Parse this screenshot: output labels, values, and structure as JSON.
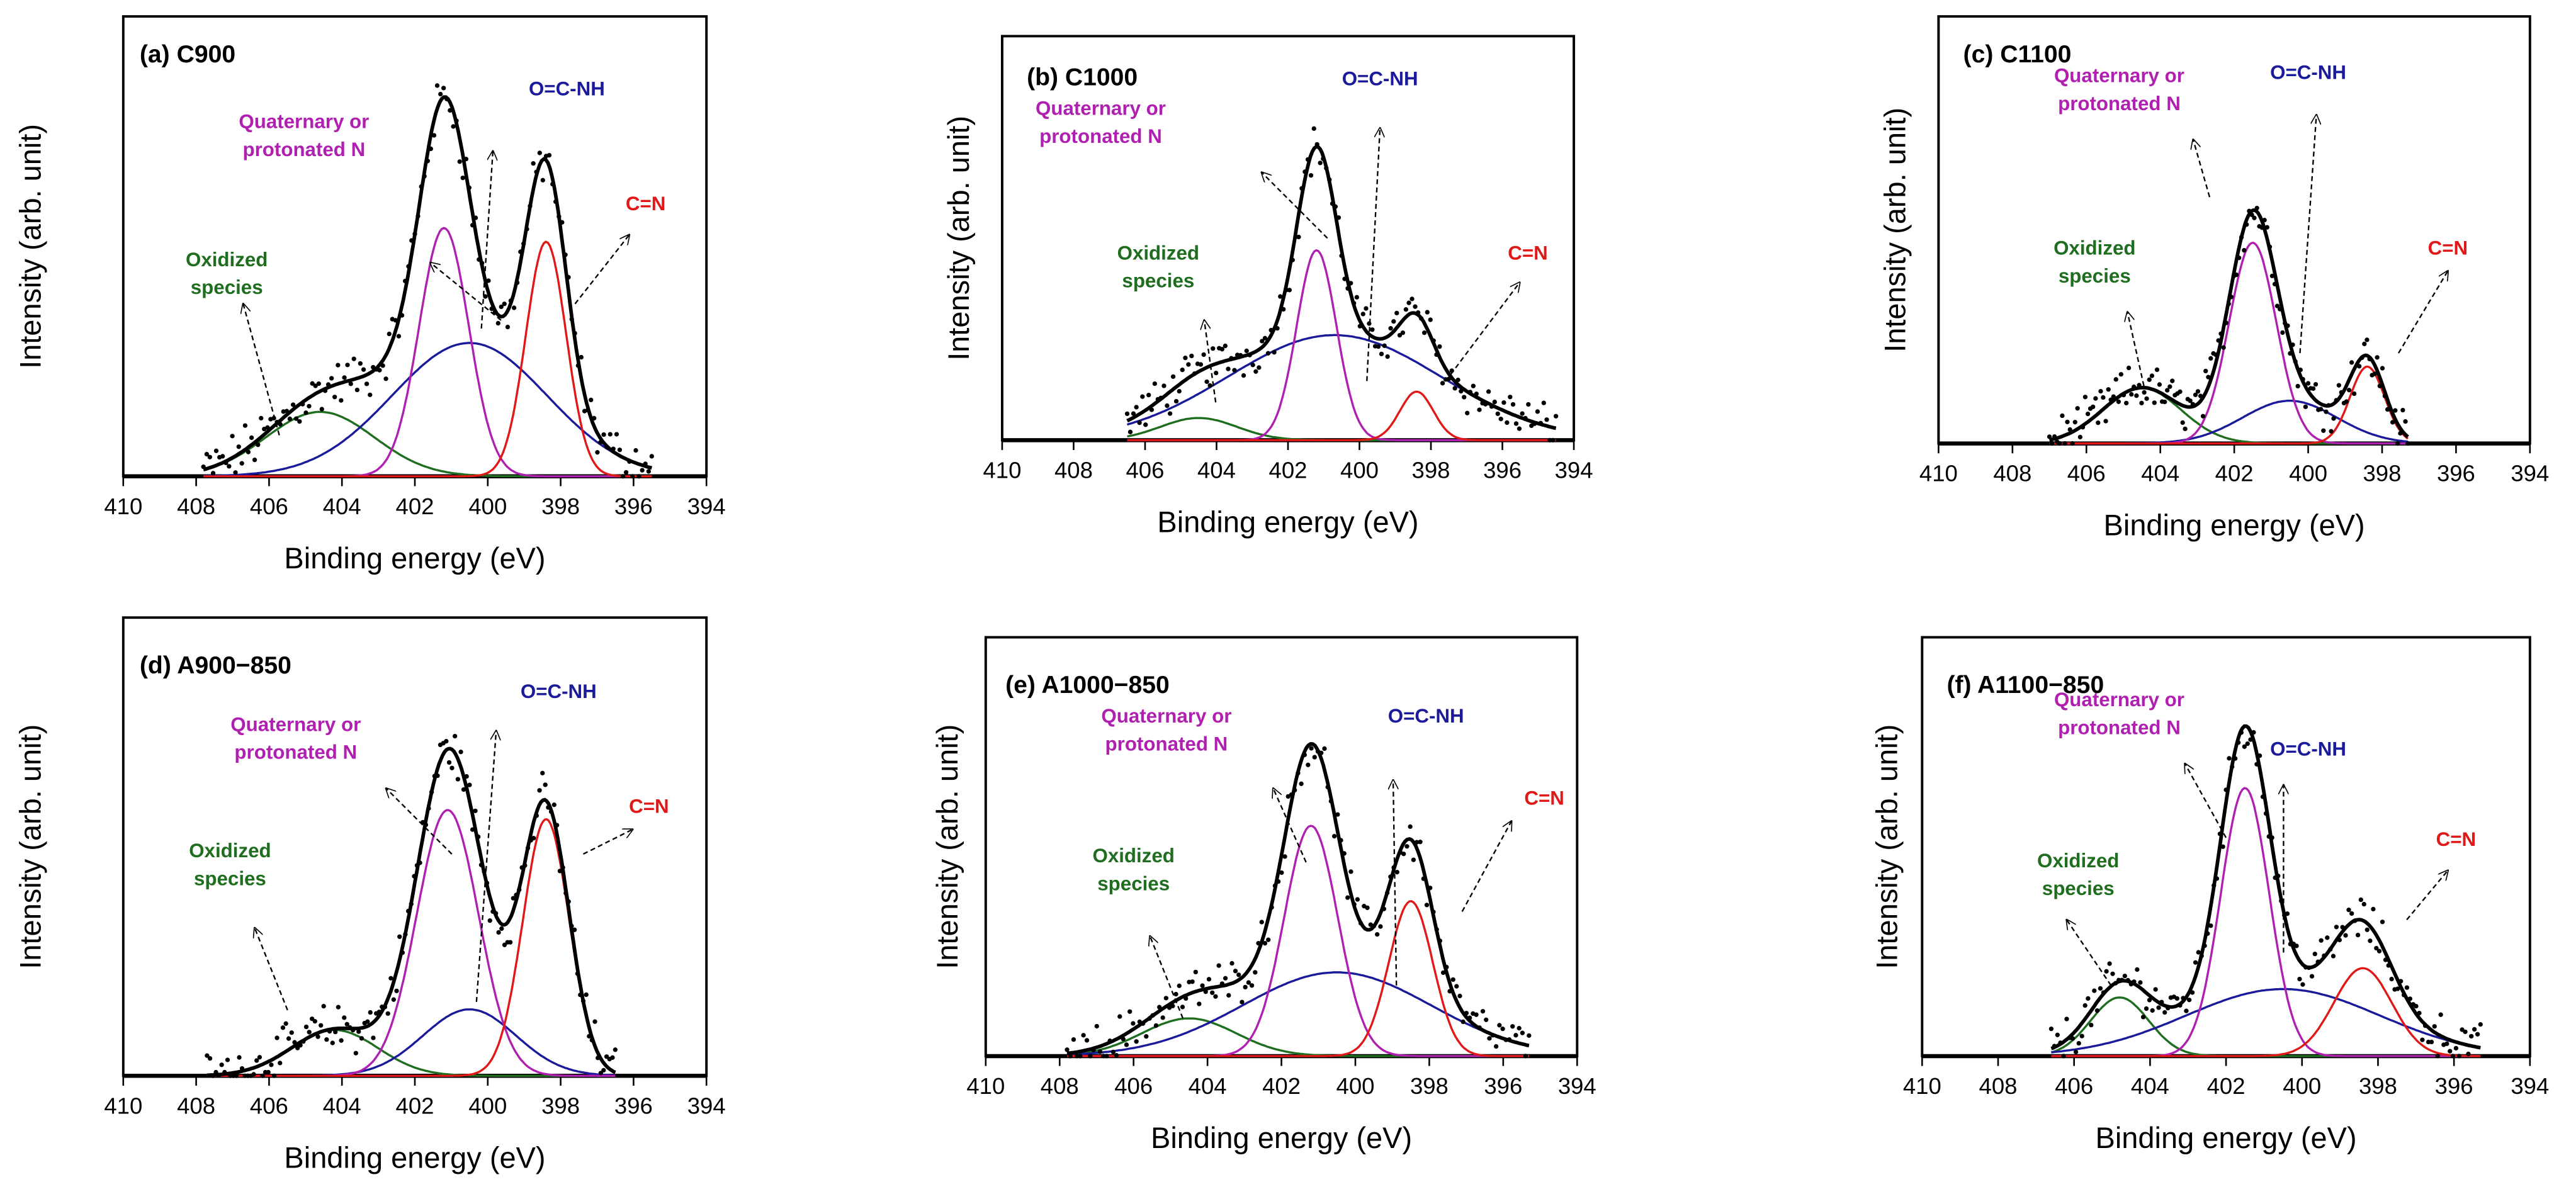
{
  "colors": {
    "data": "#000000",
    "envelope": "#000000",
    "quaternary": "#b020b0",
    "amide": "#1a1a9a",
    "imine": "#e01818",
    "oxidized": "#1f6e1f"
  },
  "chart_data": [
    {
      "type": "line",
      "title": "(a) C900",
      "xlabel": "Binding energy (eV)",
      "ylabel": "Intensity (arb. unit)",
      "xlim": [
        410,
        394
      ],
      "ylim": [
        0,
        1
      ],
      "xticks": [
        "410",
        "408",
        "406",
        "404",
        "402",
        "400",
        "398",
        "396",
        "394"
      ],
      "energy_range": [
        407.8,
        395.5
      ],
      "components": [
        {
          "key": "oxidized",
          "label": [
            "Oxidized",
            "species"
          ],
          "center_eV": 404.6,
          "height": 0.14,
          "fwhm_eV": 3.5
        },
        {
          "key": "amide",
          "label": [
            "O=C-NH"
          ],
          "center_eV": 400.5,
          "height": 0.29,
          "fwhm_eV": 5.0
        },
        {
          "key": "quaternary",
          "label": [
            "Quaternary or",
            "protonated N"
          ],
          "center_eV": 401.2,
          "height": 0.54,
          "fwhm_eV": 1.6
        },
        {
          "key": "imine",
          "label": [
            "C=N"
          ],
          "center_eV": 398.4,
          "height": 0.51,
          "fwhm_eV": 1.3
        }
      ]
    },
    {
      "type": "line",
      "title": "(b) C1000",
      "xlabel": "Binding energy (eV)",
      "ylabel": "Intensity (arb. unit)",
      "xlim": [
        410,
        394
      ],
      "ylim": [
        0,
        1
      ],
      "xticks": [
        "410",
        "408",
        "406",
        "404",
        "402",
        "400",
        "398",
        "396",
        "394"
      ],
      "energy_range": [
        406.5,
        394.5
      ],
      "components": [
        {
          "key": "oxidized",
          "label": [
            "Oxidized",
            "species"
          ],
          "center_eV": 404.5,
          "height": 0.055,
          "fwhm_eV": 2.5
        },
        {
          "key": "amide",
          "label": [
            "O=C-NH"
          ],
          "center_eV": 400.7,
          "height": 0.26,
          "fwhm_eV": 7.0
        },
        {
          "key": "quaternary",
          "label": [
            "Quaternary or",
            "protonated N"
          ],
          "center_eV": 401.2,
          "height": 0.47,
          "fwhm_eV": 1.3
        },
        {
          "key": "imine",
          "label": [
            "C=N"
          ],
          "center_eV": 398.4,
          "height": 0.12,
          "fwhm_eV": 1.1
        }
      ]
    },
    {
      "type": "line",
      "title": "(c) C1100",
      "xlabel": "Binding energy (eV)",
      "ylabel": "Intensity (arb. unit)",
      "xlim": [
        410,
        394
      ],
      "ylim": [
        0,
        1
      ],
      "xticks": [
        "410",
        "408",
        "406",
        "404",
        "402",
        "400",
        "398",
        "396",
        "394"
      ],
      "energy_range": [
        407.0,
        397.3
      ],
      "components": [
        {
          "key": "oxidized",
          "label": [
            "Oxidized",
            "species"
          ],
          "center_eV": 404.5,
          "height": 0.13,
          "fwhm_eV": 2.5
        },
        {
          "key": "amide",
          "label": [
            "O=C-NH"
          ],
          "center_eV": 400.5,
          "height": 0.1,
          "fwhm_eV": 3.0
        },
        {
          "key": "quaternary",
          "label": [
            "Quaternary or",
            "protonated N"
          ],
          "center_eV": 401.5,
          "height": 0.47,
          "fwhm_eV": 1.5
        },
        {
          "key": "imine",
          "label": [
            "C=N"
          ],
          "center_eV": 398.4,
          "height": 0.18,
          "fwhm_eV": 1.1
        }
      ]
    },
    {
      "type": "line",
      "title": "(d) A900−850",
      "xlabel": "Binding energy (eV)",
      "ylabel": "Intensity (arb. unit)",
      "xlim": [
        410,
        394
      ],
      "ylim": [
        0,
        1
      ],
      "xticks": [
        "410",
        "408",
        "406",
        "404",
        "402",
        "400",
        "398",
        "396",
        "394"
      ],
      "energy_range": [
        407.7,
        396.5
      ],
      "components": [
        {
          "key": "oxidized",
          "label": [
            "Oxidized",
            "species"
          ],
          "center_eV": 404.2,
          "height": 0.1,
          "fwhm_eV": 2.8
        },
        {
          "key": "amide",
          "label": [
            "O=C-NH"
          ],
          "center_eV": 400.5,
          "height": 0.145,
          "fwhm_eV": 3.0
        },
        {
          "key": "quaternary",
          "label": [
            "Quaternary or",
            "protonated N"
          ],
          "center_eV": 401.1,
          "height": 0.58,
          "fwhm_eV": 2.0
        },
        {
          "key": "imine",
          "label": [
            "C=N"
          ],
          "center_eV": 398.4,
          "height": 0.56,
          "fwhm_eV": 1.5
        }
      ]
    },
    {
      "type": "line",
      "title": "(e) A1000−850",
      "xlabel": "Binding energy (eV)",
      "ylabel": "Intensity (arb. unit)",
      "xlim": [
        410,
        394
      ],
      "ylim": [
        0,
        1
      ],
      "xticks": [
        "410",
        "408",
        "406",
        "404",
        "402",
        "400",
        "398",
        "396",
        "394"
      ],
      "energy_range": [
        407.8,
        395.3
      ],
      "components": [
        {
          "key": "oxidized",
          "label": [
            "Oxidized",
            "species"
          ],
          "center_eV": 404.5,
          "height": 0.09,
          "fwhm_eV": 3.0
        },
        {
          "key": "amide",
          "label": [
            "O=C-NH"
          ],
          "center_eV": 400.5,
          "height": 0.2,
          "fwhm_eV": 6.0
        },
        {
          "key": "quaternary",
          "label": [
            "Quaternary or",
            "protonated N"
          ],
          "center_eV": 401.2,
          "height": 0.55,
          "fwhm_eV": 1.7
        },
        {
          "key": "imine",
          "label": [
            "C=N"
          ],
          "center_eV": 398.5,
          "height": 0.37,
          "fwhm_eV": 1.4
        }
      ]
    },
    {
      "type": "line",
      "title": "(f) A1100−850",
      "xlabel": "Binding energy (eV)",
      "ylabel": "Intensity (arb. unit)",
      "xlim": [
        410,
        394
      ],
      "ylim": [
        0,
        1
      ],
      "xticks": [
        "410",
        "408",
        "406",
        "404",
        "402",
        "400",
        "398",
        "396",
        "394"
      ],
      "energy_range": [
        406.6,
        395.3
      ],
      "components": [
        {
          "key": "oxidized",
          "label": [
            "Oxidized",
            "species"
          ],
          "center_eV": 404.8,
          "height": 0.14,
          "fwhm_eV": 1.8
        },
        {
          "key": "amide",
          "label": [
            "O=C-NH"
          ],
          "center_eV": 400.5,
          "height": 0.16,
          "fwhm_eV": 6.0
        },
        {
          "key": "quaternary",
          "label": [
            "Quaternary or",
            "protonated N"
          ],
          "center_eV": 401.5,
          "height": 0.64,
          "fwhm_eV": 1.5
        },
        {
          "key": "imine",
          "label": [
            "C=N"
          ],
          "center_eV": 398.4,
          "height": 0.21,
          "fwhm_eV": 1.8
        }
      ]
    }
  ]
}
